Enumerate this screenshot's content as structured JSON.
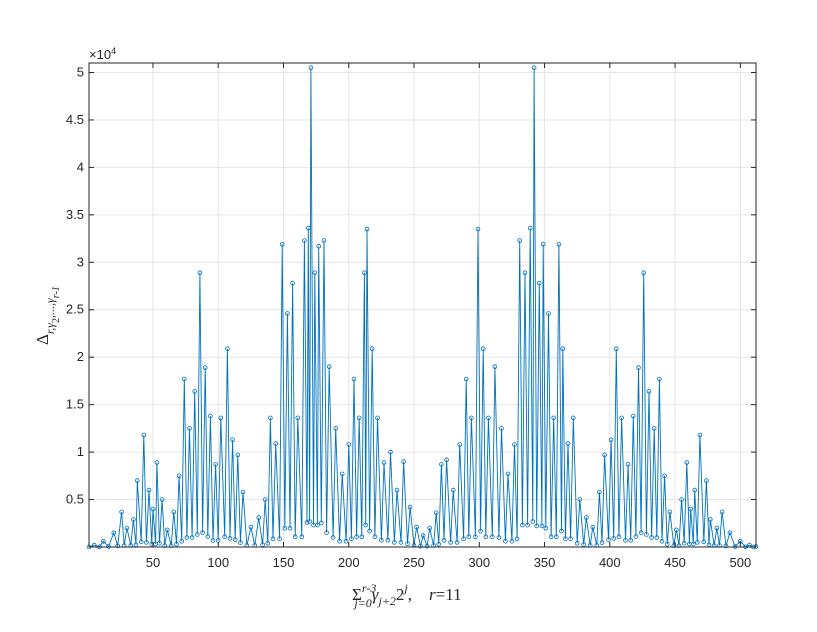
{
  "chart_data": {
    "type": "line",
    "title": "",
    "xlabel": {
      "main": "Σ",
      "sup1": "r-3",
      "sub1": "j=0",
      "mid": "γ",
      "sub2": "j+2",
      "base": "2",
      "sup2": "j",
      "tail": ",    ",
      "r": "r",
      "eq": "=11"
    },
    "ylabel": {
      "main": "Δ",
      "sub": "r,γ",
      "sub2": "2",
      "sub3": ",...,γ",
      "sub4": "r-1"
    },
    "exponent_label": "×10",
    "exponent_power": "4",
    "xlim": [
      1,
      512
    ],
    "ylim": [
      0,
      51000
    ],
    "xticks": [
      50,
      100,
      150,
      200,
      250,
      300,
      350,
      400,
      450,
      500
    ],
    "xtick_labels": [
      "50",
      "100",
      "150",
      "200",
      "250",
      "300",
      "350",
      "400",
      "450",
      "500"
    ],
    "yticks": [
      5000,
      10000,
      15000,
      20000,
      25000,
      30000,
      35000,
      40000,
      45000,
      50000
    ],
    "ytick_labels": [
      "0.5",
      "1",
      "1.5",
      "2",
      "2.5",
      "3",
      "3.5",
      "4",
      "4.5",
      "5"
    ],
    "grid": true,
    "marker": "circle",
    "series_color": "#0072bd",
    "peaks": [
      {
        "x": 5,
        "y": 200
      },
      {
        "x": 12,
        "y": 600
      },
      {
        "x": 20,
        "y": 1500
      },
      {
        "x": 26,
        "y": 3700
      },
      {
        "x": 30,
        "y": 2000
      },
      {
        "x": 35,
        "y": 2900
      },
      {
        "x": 38,
        "y": 7000
      },
      {
        "x": 43,
        "y": 11800
      },
      {
        "x": 47,
        "y": 6000
      },
      {
        "x": 50,
        "y": 4000
      },
      {
        "x": 53,
        "y": 8900
      },
      {
        "x": 57,
        "y": 5000
      },
      {
        "x": 61,
        "y": 1800
      },
      {
        "x": 66,
        "y": 3700
      },
      {
        "x": 70,
        "y": 7500
      },
      {
        "x": 74,
        "y": 17700
      },
      {
        "x": 78,
        "y": 12500
      },
      {
        "x": 82,
        "y": 16400
      },
      {
        "x": 86,
        "y": 28900
      },
      {
        "x": 90,
        "y": 18900
      },
      {
        "x": 94,
        "y": 13800
      },
      {
        "x": 98,
        "y": 8700
      },
      {
        "x": 102,
        "y": 13600
      },
      {
        "x": 107,
        "y": 20900
      },
      {
        "x": 111,
        "y": 11300
      },
      {
        "x": 115,
        "y": 9700
      },
      {
        "x": 119,
        "y": 5800
      },
      {
        "x": 125,
        "y": 2100
      },
      {
        "x": 131,
        "y": 3100
      },
      {
        "x": 136,
        "y": 5000
      },
      {
        "x": 140,
        "y": 13600
      },
      {
        "x": 144,
        "y": 10900
      },
      {
        "x": 149,
        "y": 31900
      },
      {
        "x": 153,
        "y": 24600
      },
      {
        "x": 157,
        "y": 27800
      },
      {
        "x": 161,
        "y": 13600
      },
      {
        "x": 166,
        "y": 32300
      },
      {
        "x": 169,
        "y": 33600
      },
      {
        "x": 171,
        "y": 50500
      },
      {
        "x": 174,
        "y": 28900
      },
      {
        "x": 177,
        "y": 31700
      },
      {
        "x": 181,
        "y": 32300
      },
      {
        "x": 185,
        "y": 19000
      },
      {
        "x": 190,
        "y": 12500
      },
      {
        "x": 195,
        "y": 7700
      },
      {
        "x": 200,
        "y": 10800
      },
      {
        "x": 204,
        "y": 17700
      },
      {
        "x": 208,
        "y": 13600
      },
      {
        "x": 212,
        "y": 28900
      },
      {
        "x": 214,
        "y": 33500
      },
      {
        "x": 218,
        "y": 20900
      },
      {
        "x": 222,
        "y": 13600
      },
      {
        "x": 227,
        "y": 8900
      },
      {
        "x": 232,
        "y": 10000
      },
      {
        "x": 237,
        "y": 6000
      },
      {
        "x": 242,
        "y": 9000
      },
      {
        "x": 247,
        "y": 4200
      },
      {
        "x": 252,
        "y": 2100
      },
      {
        "x": 257,
        "y": 1200
      },
      {
        "x": 262,
        "y": 2000
      },
      {
        "x": 267,
        "y": 3600
      },
      {
        "x": 271,
        "y": 8700
      },
      {
        "x": 275,
        "y": 9200
      },
      {
        "x": 280,
        "y": 6000
      },
      {
        "x": 285,
        "y": 10800
      },
      {
        "x": 290,
        "y": 17700
      },
      {
        "x": 294,
        "y": 13600
      },
      {
        "x": 299,
        "y": 33500
      },
      {
        "x": 303,
        "y": 20900
      },
      {
        "x": 307,
        "y": 13600
      },
      {
        "x": 312,
        "y": 19000
      },
      {
        "x": 317,
        "y": 12500
      },
      {
        "x": 322,
        "y": 7700
      },
      {
        "x": 327,
        "y": 10800
      },
      {
        "x": 331,
        "y": 32300
      },
      {
        "x": 335,
        "y": 28900
      },
      {
        "x": 339,
        "y": 33600
      },
      {
        "x": 342,
        "y": 50500
      },
      {
        "x": 346,
        "y": 27800
      },
      {
        "x": 349,
        "y": 31900
      },
      {
        "x": 353,
        "y": 24600
      },
      {
        "x": 357,
        "y": 13600
      },
      {
        "x": 361,
        "y": 31900
      },
      {
        "x": 364,
        "y": 20900
      },
      {
        "x": 368,
        "y": 10900
      },
      {
        "x": 372,
        "y": 13600
      },
      {
        "x": 377,
        "y": 5000
      },
      {
        "x": 382,
        "y": 3100
      },
      {
        "x": 387,
        "y": 2100
      },
      {
        "x": 392,
        "y": 5800
      },
      {
        "x": 396,
        "y": 9700
      },
      {
        "x": 401,
        "y": 11300
      },
      {
        "x": 405,
        "y": 20900
      },
      {
        "x": 409,
        "y": 13600
      },
      {
        "x": 414,
        "y": 8700
      },
      {
        "x": 418,
        "y": 13800
      },
      {
        "x": 422,
        "y": 18900
      },
      {
        "x": 426,
        "y": 28900
      },
      {
        "x": 430,
        "y": 16400
      },
      {
        "x": 434,
        "y": 12500
      },
      {
        "x": 438,
        "y": 17700
      },
      {
        "x": 442,
        "y": 7500
      },
      {
        "x": 446,
        "y": 3700
      },
      {
        "x": 451,
        "y": 1800
      },
      {
        "x": 455,
        "y": 5000
      },
      {
        "x": 459,
        "y": 8900
      },
      {
        "x": 462,
        "y": 4000
      },
      {
        "x": 465,
        "y": 6000
      },
      {
        "x": 469,
        "y": 11800
      },
      {
        "x": 474,
        "y": 7000
      },
      {
        "x": 477,
        "y": 2900
      },
      {
        "x": 482,
        "y": 2000
      },
      {
        "x": 486,
        "y": 3700
      },
      {
        "x": 492,
        "y": 1500
      },
      {
        "x": 500,
        "y": 600
      },
      {
        "x": 507,
        "y": 200
      },
      {
        "x": 512,
        "y": 50
      }
    ]
  }
}
